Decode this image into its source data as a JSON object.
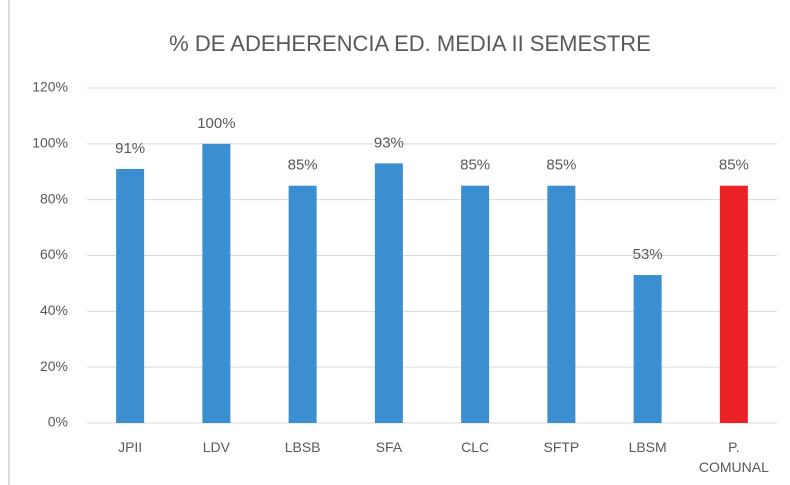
{
  "chart_data": {
    "type": "bar",
    "title": "% DE ADEHERENCIA ED. MEDIA II SEMESTRE",
    "categories": [
      "JPII",
      "LDV",
      "LBSB",
      "SFA",
      "CLC",
      "SFTP",
      "LBSM",
      "P. COMUNAL"
    ],
    "values": [
      91,
      100,
      85,
      93,
      85,
      85,
      53,
      85
    ],
    "value_labels": [
      "91%",
      "100%",
      "85%",
      "93%",
      "85%",
      "85%",
      "53%",
      "85%"
    ],
    "colors": [
      "#3b8fd1",
      "#3b8fd1",
      "#3b8fd1",
      "#3b8fd1",
      "#3b8fd1",
      "#3b8fd1",
      "#3b8fd1",
      "#ea2226"
    ],
    "ylim": [
      0,
      120
    ],
    "yticks": [
      {
        "value": 0,
        "label": "0%"
      },
      {
        "value": 20,
        "label": "20%"
      },
      {
        "value": 40,
        "label": "40%"
      },
      {
        "value": 60,
        "label": "60%"
      },
      {
        "value": 80,
        "label": "80%"
      },
      {
        "value": 100,
        "label": "100%"
      },
      {
        "value": 120,
        "label": "120%"
      }
    ],
    "grid": true
  }
}
